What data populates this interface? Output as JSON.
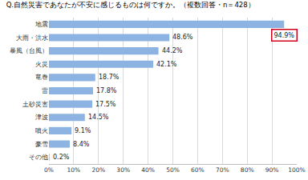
{
  "chart_data": {
    "type": "bar",
    "orientation": "horizontal",
    "title": "Q.自然災害であなたが不安に感じるものは何ですか。（複数回答・n＝428）",
    "categories": [
      "地震",
      "大雨・洪水",
      "暴風（台風）",
      "火災",
      "竜巻",
      "雷",
      "土砂災害",
      "津波",
      "噴火",
      "豪雪",
      "その他"
    ],
    "values": [
      94.9,
      48.6,
      44.2,
      42.1,
      18.7,
      17.8,
      17.5,
      14.5,
      9.1,
      8.4,
      0.2
    ],
    "value_labels": [
      "94.9%",
      "48.6%",
      "44.2%",
      "42.1%",
      "18.7%",
      "17.8%",
      "17.5%",
      "14.5%",
      "9.1%",
      "8.4%",
      "0.2%"
    ],
    "data_labels": true,
    "color": "#8db3e2",
    "xlim": [
      0,
      100
    ],
    "xticks": [
      {
        "value": 0,
        "label": "0%"
      },
      {
        "value": 10,
        "label": "10%"
      },
      {
        "value": 20,
        "label": "20%"
      },
      {
        "value": 30,
        "label": "30%"
      },
      {
        "value": 40,
        "label": "40%"
      },
      {
        "value": 50,
        "label": "50%"
      },
      {
        "value": 60,
        "label": "60%"
      },
      {
        "value": 70,
        "label": "70%"
      },
      {
        "value": 80,
        "label": "80%"
      },
      {
        "value": 90,
        "label": "90%"
      },
      {
        "value": 100,
        "label": "100%"
      }
    ],
    "grid": true
  }
}
